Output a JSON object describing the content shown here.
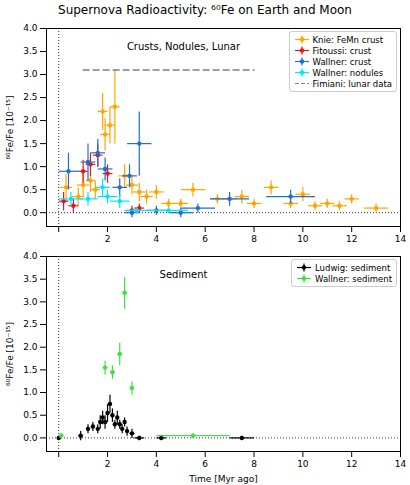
{
  "chart_data": [
    {
      "type": "scatter",
      "title": "Supernova Radioactivity: ⁶⁰Fe on Earth and Moon",
      "y_label": "⁶⁰Fe/Fe [10⁻¹⁵]",
      "annotation": "Crusts, Nodules, Lunar",
      "xlim": [
        -0.5,
        14
      ],
      "ylim": [
        -0.3,
        4.0
      ],
      "xticks": [
        0,
        2,
        4,
        6,
        8,
        10,
        12,
        14
      ],
      "yticks": [
        {
          "value": 0,
          "label": "0.0"
        },
        {
          "value": 0.5,
          "label": "0.5"
        },
        {
          "value": 1,
          "label": "1.0"
        },
        {
          "value": 1.5,
          "label": "1.5"
        },
        {
          "value": 2,
          "label": "2.0"
        },
        {
          "value": 2.5,
          "label": "2.5"
        },
        {
          "value": 3,
          "label": "3.0"
        },
        {
          "value": 3.5,
          "label": "3.5"
        },
        {
          "value": 4,
          "label": "4.0"
        }
      ],
      "reference_lines": {
        "x": 0,
        "y": 0
      },
      "legend": "upper right",
      "series": [
        {
          "name": "Knie: FeMn crust",
          "color": "#ffa500",
          "marker": "o",
          "x": [
            0.3,
            0.8,
            1.0,
            1.3,
            1.5,
            1.8,
            1.9,
            2.1,
            2.3,
            2.7,
            3.0,
            3.3,
            3.6,
            4.0,
            4.5,
            5.0,
            5.5,
            6.5,
            7.0,
            7.5,
            8.0,
            8.7,
            9.5,
            10.0,
            10.5,
            11.0,
            11.5,
            12.0,
            13.0
          ],
          "values": [
            0.55,
            0.35,
            0.6,
            0.7,
            0.5,
            2.2,
            1.7,
            1.9,
            2.3,
            0.8,
            0.6,
            0.45,
            0.35,
            0.45,
            0.2,
            0.2,
            0.5,
            0.3,
            0.3,
            0.35,
            0.2,
            0.55,
            0.2,
            0.4,
            0.15,
            0.2,
            0.15,
            0.3,
            0.1
          ],
          "x_err": [
            0.25,
            0.25,
            0.25,
            0.2,
            0.2,
            0.2,
            0.2,
            0.2,
            0.2,
            0.25,
            0.25,
            0.25,
            0.25,
            0.3,
            0.3,
            0.3,
            0.5,
            0.3,
            0.3,
            0.3,
            0.3,
            0.3,
            0.3,
            0.3,
            0.3,
            0.3,
            0.3,
            0.3,
            0.5
          ],
          "y_err": [
            0.3,
            0.2,
            0.25,
            0.25,
            0.2,
            0.4,
            0.35,
            0.4,
            0.8,
            0.25,
            0.2,
            0.2,
            0.15,
            0.15,
            0.1,
            0.1,
            0.15,
            0.1,
            0.1,
            0.15,
            0.1,
            0.15,
            0.1,
            0.15,
            0.1,
            0.1,
            0.1,
            0.1,
            0.1
          ]
        },
        {
          "name": "Fitoussi: crust",
          "color": "#e8141b",
          "marker": "o",
          "x": [
            0.2,
            0.6,
            1.0,
            1.3,
            1.6,
            2.0,
            3.0,
            3.3
          ],
          "values": [
            0.25,
            0.15,
            0.9,
            1.05,
            1.25,
            0.85,
            0.05,
            0.1
          ],
          "x_err": [
            0.2,
            0.2,
            0.2,
            0.2,
            0.2,
            0.2,
            0.2,
            0.2
          ],
          "y_err": [
            0.2,
            0.15,
            0.25,
            0.25,
            0.25,
            0.2,
            0.1,
            0.1
          ]
        },
        {
          "name": "Wallner: crust",
          "color": "#1f6fd1",
          "marker": "o",
          "x": [
            0.4,
            1.2,
            1.6,
            1.9,
            2.5,
            2.9,
            3.3,
            3.0,
            4.0,
            5.0,
            5.7,
            7.0,
            9.5
          ],
          "values": [
            0.9,
            1.1,
            1.3,
            0.95,
            0.55,
            0.8,
            1.5,
            0.0,
            0.05,
            0.0,
            0.1,
            0.3,
            0.35
          ],
          "x_err": [
            0.4,
            0.3,
            0.3,
            0.3,
            0.3,
            0.3,
            0.5,
            0.3,
            0.4,
            0.5,
            0.7,
            0.8,
            1.0
          ],
          "y_err": [
            0.4,
            0.4,
            0.3,
            0.25,
            0.2,
            0.25,
            0.7,
            0.1,
            0.1,
            0.1,
            0.1,
            0.15,
            0.15
          ]
        },
        {
          "name": "Wallner: nodules",
          "color": "#00e5ff",
          "marker": "o",
          "x": [
            0.5,
            1.2,
            1.8,
            2.0,
            2.5,
            3.2,
            4.5
          ],
          "values": [
            0.3,
            0.3,
            0.55,
            0.35,
            0.25,
            0.05,
            0.05
          ],
          "x_err": [
            0.5,
            0.4,
            0.3,
            0.4,
            0.4,
            0.5,
            0.8
          ],
          "y_err": [
            0.15,
            0.15,
            0.2,
            0.15,
            0.15,
            0.05,
            0.05
          ]
        },
        {
          "name": "Fimiani: lunar data",
          "color": "#808080",
          "type": "line",
          "line_style": "dashed",
          "x": [
            1,
            8
          ],
          "values": [
            3.1,
            3.1
          ]
        }
      ]
    },
    {
      "type": "scatter",
      "x_label": "Time [Myr ago]",
      "y_label": "⁶⁰Fe/Fe [10⁻¹⁵]",
      "annotation": "Sediment",
      "xlim": [
        -0.5,
        14
      ],
      "ylim": [
        -0.3,
        4.0
      ],
      "xticks": [
        0,
        2,
        4,
        6,
        8,
        10,
        12,
        14
      ],
      "yticks": [
        {
          "value": 0,
          "label": "0.0"
        },
        {
          "value": 0.5,
          "label": "0.5"
        },
        {
          "value": 1,
          "label": "1.0"
        },
        {
          "value": 1.5,
          "label": "1.5"
        },
        {
          "value": 2,
          "label": "2.0"
        },
        {
          "value": 2.5,
          "label": "2.5"
        },
        {
          "value": 3,
          "label": "3.0"
        },
        {
          "value": 3.5,
          "label": "3.5"
        },
        {
          "value": 4,
          "label": "4.0"
        }
      ],
      "reference_lines": {
        "x": 0,
        "y": 0
      },
      "legend": "upper right",
      "series": [
        {
          "name": "Ludwig: sediment",
          "color": "#000000",
          "marker": "o",
          "x": [
            0.0,
            0.9,
            1.2,
            1.4,
            1.6,
            1.7,
            1.8,
            1.9,
            2.0,
            2.1,
            2.2,
            2.3,
            2.4,
            2.5,
            2.6,
            2.7,
            2.8,
            3.0,
            3.3,
            4.2,
            7.5
          ],
          "values": [
            0.0,
            0.05,
            0.2,
            0.25,
            0.2,
            0.35,
            0.45,
            0.35,
            0.55,
            0.75,
            0.5,
            0.3,
            0.45,
            0.3,
            0.2,
            0.35,
            0.15,
            0.1,
            0.0,
            0.0,
            0.0
          ],
          "x_err": [
            0.05,
            0.1,
            0.05,
            0.05,
            0.05,
            0.05,
            0.05,
            0.05,
            0.05,
            0.05,
            0.05,
            0.05,
            0.05,
            0.05,
            0.05,
            0.05,
            0.05,
            0.1,
            0.2,
            0.2,
            0.5
          ],
          "y_err": [
            0.05,
            0.1,
            0.1,
            0.1,
            0.1,
            0.15,
            0.15,
            0.15,
            0.2,
            0.2,
            0.15,
            0.1,
            0.15,
            0.1,
            0.1,
            0.1,
            0.1,
            0.1,
            0.05,
            0.05,
            0.05
          ]
        },
        {
          "name": "Wallner: sediment",
          "color": "#40e040",
          "marker": "o",
          "x": [
            0.1,
            1.9,
            2.2,
            2.5,
            2.7,
            3.0,
            5.5
          ],
          "values": [
            0.05,
            1.55,
            1.45,
            1.85,
            3.2,
            1.1,
            0.05
          ],
          "x_err": [
            0.1,
            0.1,
            0.1,
            0.1,
            0.1,
            0.1,
            1.5
          ],
          "y_err": [
            0.05,
            0.15,
            0.15,
            0.25,
            0.35,
            0.15,
            0.05
          ]
        }
      ]
    }
  ]
}
